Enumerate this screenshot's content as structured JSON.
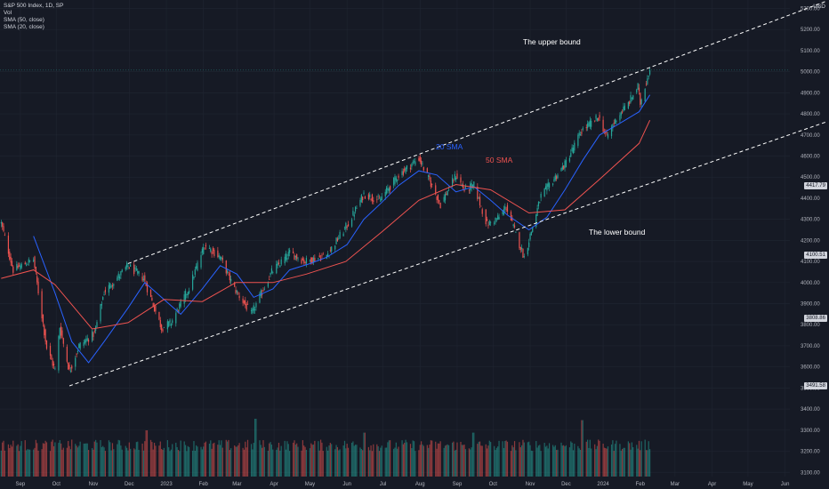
{
  "legend": {
    "symbol_line": "S&P 500 Index, 1D, SP",
    "vol": "Vol",
    "sma50": "SMA (50, close)",
    "sma20": "SMA (20, close)"
  },
  "currency": "USD",
  "annotations": {
    "upper_bound": "The upper bound",
    "lower_bound": "The lower bound",
    "sma20_label": "20 SMA",
    "sma50_label": "50 SMA"
  },
  "price_tags": [
    "4417.79",
    "4100.51",
    "3808.86",
    "3491.58"
  ],
  "colors": {
    "background": "#161a25",
    "up": "#26a69a",
    "down": "#ef5350",
    "sma20": "#2962ff",
    "sma50": "#ef5350",
    "channel": "#ffffff",
    "grid": "#1f2430"
  },
  "chart_data": {
    "type": "candlestick",
    "title": "S&P 500 Index, 1D, SP",
    "y_axis": {
      "ticks": [
        "5300.00",
        "5200.00",
        "5100.00",
        "5000.00",
        "4900.00",
        "4800.00",
        "4700.00",
        "4600.00",
        "4500.00",
        "4400.00",
        "4300.00",
        "4200.00",
        "4100.00",
        "4000.00",
        "3900.00",
        "3800.00",
        "3700.00",
        "3600.00",
        "3500.00",
        "3400.00",
        "3300.00",
        "3200.00",
        "3100.00"
      ],
      "range": [
        3080,
        5340
      ]
    },
    "x_axis": {
      "ticks": [
        "Sep",
        "Oct",
        "Nov",
        "Dec",
        "2023",
        "Feb",
        "Mar",
        "Apr",
        "May",
        "Jun",
        "Jul",
        "Aug",
        "Sep",
        "Oct",
        "Nov",
        "Dec",
        "2024",
        "Feb",
        "Mar",
        "Apr",
        "May",
        "Jun"
      ],
      "range": [
        "2022-08-15",
        "2024-06-05"
      ]
    },
    "price_path": [
      [
        "2022-08-16",
        4280
      ],
      [
        "2022-08-26",
        4060
      ],
      [
        "2022-09-12",
        4110
      ],
      [
        "2022-09-23",
        3690
      ],
      [
        "2022-09-30",
        3585
      ],
      [
        "2022-10-04",
        3790
      ],
      [
        "2022-10-12",
        3578
      ],
      [
        "2022-10-20",
        3700
      ],
      [
        "2022-11-02",
        3760
      ],
      [
        "2022-11-10",
        3955
      ],
      [
        "2022-11-30",
        4080
      ],
      [
        "2022-12-13",
        4020
      ],
      [
        "2022-12-28",
        3785
      ],
      [
        "2023-01-05",
        3810
      ],
      [
        "2023-01-20",
        3975
      ],
      [
        "2023-02-02",
        4180
      ],
      [
        "2023-02-15",
        4120
      ],
      [
        "2023-02-27",
        3970
      ],
      [
        "2023-03-13",
        3850
      ],
      [
        "2023-03-30",
        4050
      ],
      [
        "2023-04-14",
        4140
      ],
      [
        "2023-04-27",
        4100
      ],
      [
        "2023-05-15",
        4130
      ],
      [
        "2023-06-02",
        4280
      ],
      [
        "2023-06-15",
        4420
      ],
      [
        "2023-06-28",
        4390
      ],
      [
        "2023-07-14",
        4510
      ],
      [
        "2023-07-31",
        4590
      ],
      [
        "2023-08-10",
        4470
      ],
      [
        "2023-08-18",
        4370
      ],
      [
        "2023-08-31",
        4510
      ],
      [
        "2023-09-07",
        4440
      ],
      [
        "2023-09-15",
        4460
      ],
      [
        "2023-09-26",
        4275
      ],
      [
        "2023-10-06",
        4310
      ],
      [
        "2023-10-12",
        4360
      ],
      [
        "2023-10-20",
        4230
      ],
      [
        "2023-10-27",
        4120
      ],
      [
        "2023-11-10",
        4410
      ],
      [
        "2023-11-30",
        4560
      ],
      [
        "2023-12-14",
        4720
      ],
      [
        "2023-12-28",
        4785
      ],
      [
        "2024-01-04",
        4690
      ],
      [
        "2024-01-12",
        4780
      ],
      [
        "2024-01-22",
        4850
      ],
      [
        "2024-01-30",
        4930
      ],
      [
        "2024-02-01",
        4850
      ],
      [
        "2024-02-09",
        5015
      ]
    ],
    "series": [
      {
        "name": "SMA (20, close)",
        "label": "20 SMA",
        "color": "#2962ff",
        "points": [
          [
            "2022-09-12",
            4220
          ],
          [
            "2022-09-30",
            3950
          ],
          [
            "2022-10-14",
            3720
          ],
          [
            "2022-10-28",
            3620
          ],
          [
            "2022-11-10",
            3720
          ],
          [
            "2022-11-30",
            3880
          ],
          [
            "2022-12-14",
            4000
          ],
          [
            "2022-12-30",
            3920
          ],
          [
            "2023-01-13",
            3850
          ],
          [
            "2023-01-31",
            3970
          ],
          [
            "2023-02-15",
            4080
          ],
          [
            "2023-03-01",
            4040
          ],
          [
            "2023-03-15",
            3930
          ],
          [
            "2023-03-31",
            3970
          ],
          [
            "2023-04-14",
            4060
          ],
          [
            "2023-05-01",
            4090
          ],
          [
            "2023-05-15",
            4120
          ],
          [
            "2023-06-01",
            4180
          ],
          [
            "2023-06-15",
            4300
          ],
          [
            "2023-06-30",
            4380
          ],
          [
            "2023-07-14",
            4460
          ],
          [
            "2023-07-31",
            4530
          ],
          [
            "2023-08-15",
            4510
          ],
          [
            "2023-08-31",
            4430
          ],
          [
            "2023-09-15",
            4455
          ],
          [
            "2023-09-29",
            4390
          ],
          [
            "2023-10-13",
            4320
          ],
          [
            "2023-10-31",
            4250
          ],
          [
            "2023-11-15",
            4310
          ],
          [
            "2023-11-30",
            4440
          ],
          [
            "2023-12-15",
            4580
          ],
          [
            "2023-12-29",
            4700
          ],
          [
            "2024-01-12",
            4745
          ],
          [
            "2024-01-31",
            4810
          ],
          [
            "2024-02-09",
            4890
          ]
        ]
      },
      {
        "name": "SMA (50, close)",
        "label": "50 SMA",
        "color": "#ef5350",
        "points": [
          [
            "2022-08-16",
            4020
          ],
          [
            "2022-09-12",
            4060
          ],
          [
            "2022-09-30",
            3990
          ],
          [
            "2022-10-31",
            3780
          ],
          [
            "2022-11-30",
            3810
          ],
          [
            "2022-12-30",
            3920
          ],
          [
            "2023-01-31",
            3910
          ],
          [
            "2023-02-28",
            4000
          ],
          [
            "2023-03-31",
            4000
          ],
          [
            "2023-04-28",
            4040
          ],
          [
            "2023-05-31",
            4100
          ],
          [
            "2023-06-30",
            4240
          ],
          [
            "2023-07-31",
            4390
          ],
          [
            "2023-08-31",
            4465
          ],
          [
            "2023-09-29",
            4440
          ],
          [
            "2023-10-31",
            4330
          ],
          [
            "2023-11-30",
            4345
          ],
          [
            "2023-12-29",
            4490
          ],
          [
            "2024-01-31",
            4660
          ],
          [
            "2024-02-09",
            4770
          ]
        ]
      }
    ],
    "channel": {
      "upper": [
        [
          "2022-11-30",
          4090
        ],
        [
          "2023-07-31",
          4600
        ],
        [
          "2024-02-09",
          5020
        ]
      ],
      "lower": [
        [
          "2022-10-12",
          3510
        ],
        [
          "2023-10-12",
          4230
        ],
        [
          "2023-11-10",
          4290
        ]
      ]
    },
    "volume": {
      "visible": true,
      "scale": "relative",
      "spikes": [
        [
          "2022-12-16",
          1.0
        ],
        [
          "2023-03-17",
          1.25
        ],
        [
          "2023-06-16",
          0.95
        ],
        [
          "2023-09-15",
          0.95
        ],
        [
          "2023-12-15",
          1.22
        ],
        [
          "2024-01-19",
          0.62
        ]
      ]
    },
    "grid": true
  }
}
